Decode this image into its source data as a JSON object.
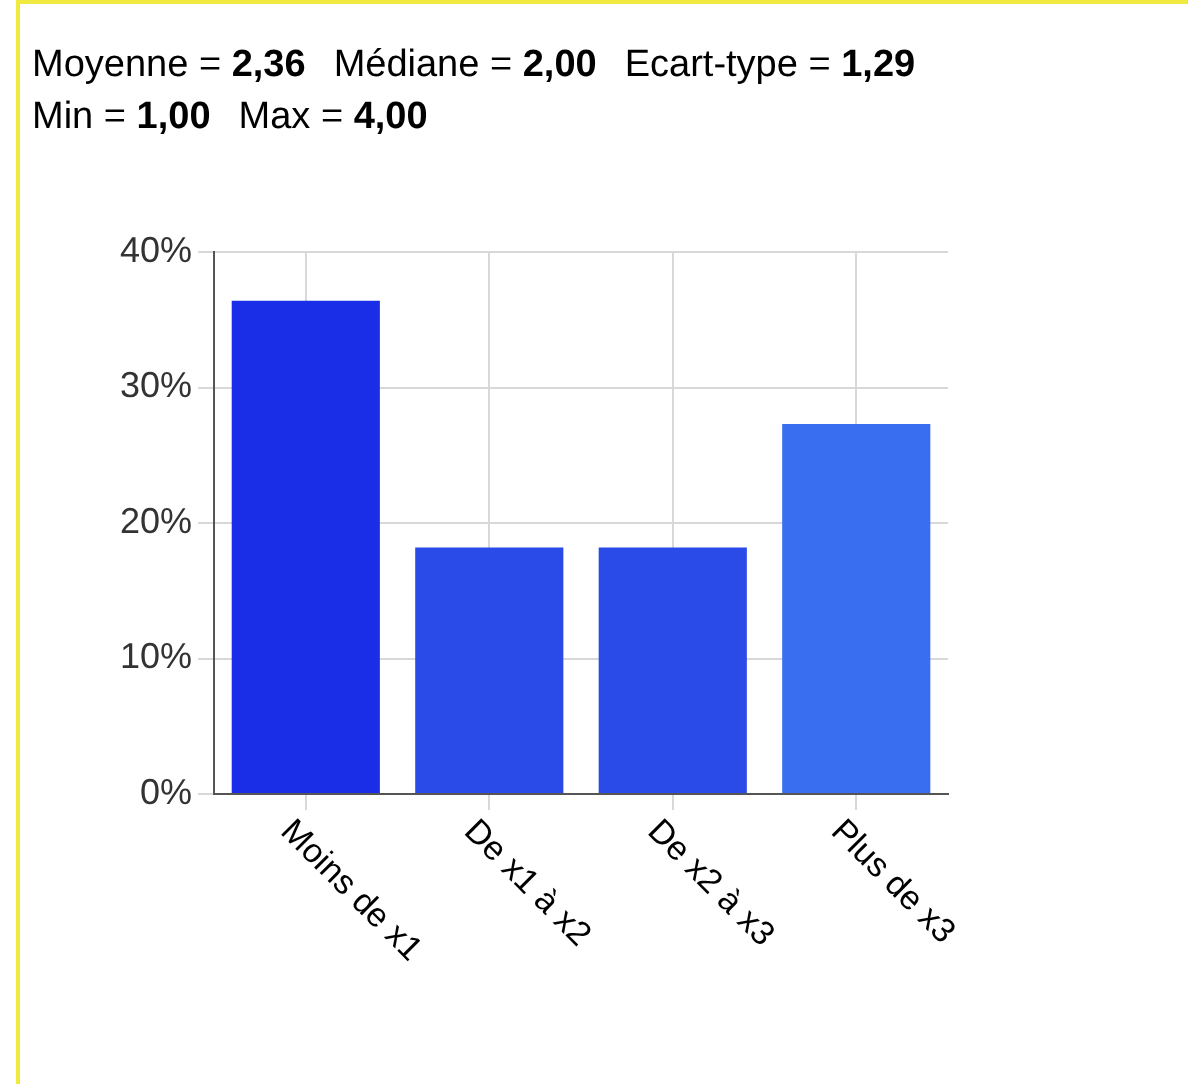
{
  "chart_data": {
    "type": "bar",
    "annotations": [
      "Moyenne = 2,36",
      "Médiane = 2,00",
      "Ecart-type = 1,29",
      "Min = 1,00",
      "Max = 4,00"
    ],
    "categories": [
      "Moins de x1",
      "De x1 à x2",
      "De x2 à x3",
      "Plus de x3"
    ],
    "values": [
      36.4,
      18.2,
      18.2,
      27.3
    ],
    "colors": [
      "#1a2ee8",
      "#2a4be8",
      "#2a4be8",
      "#3a6ef0"
    ],
    "ylim": [
      0,
      40
    ],
    "yticks": [
      {
        "value": 0,
        "label": "0%"
      },
      {
        "value": 10,
        "label": "10%"
      },
      {
        "value": 20,
        "label": "20%"
      },
      {
        "value": 30,
        "label": "30%"
      },
      {
        "value": 40,
        "label": "40%"
      }
    ],
    "grid": true
  }
}
